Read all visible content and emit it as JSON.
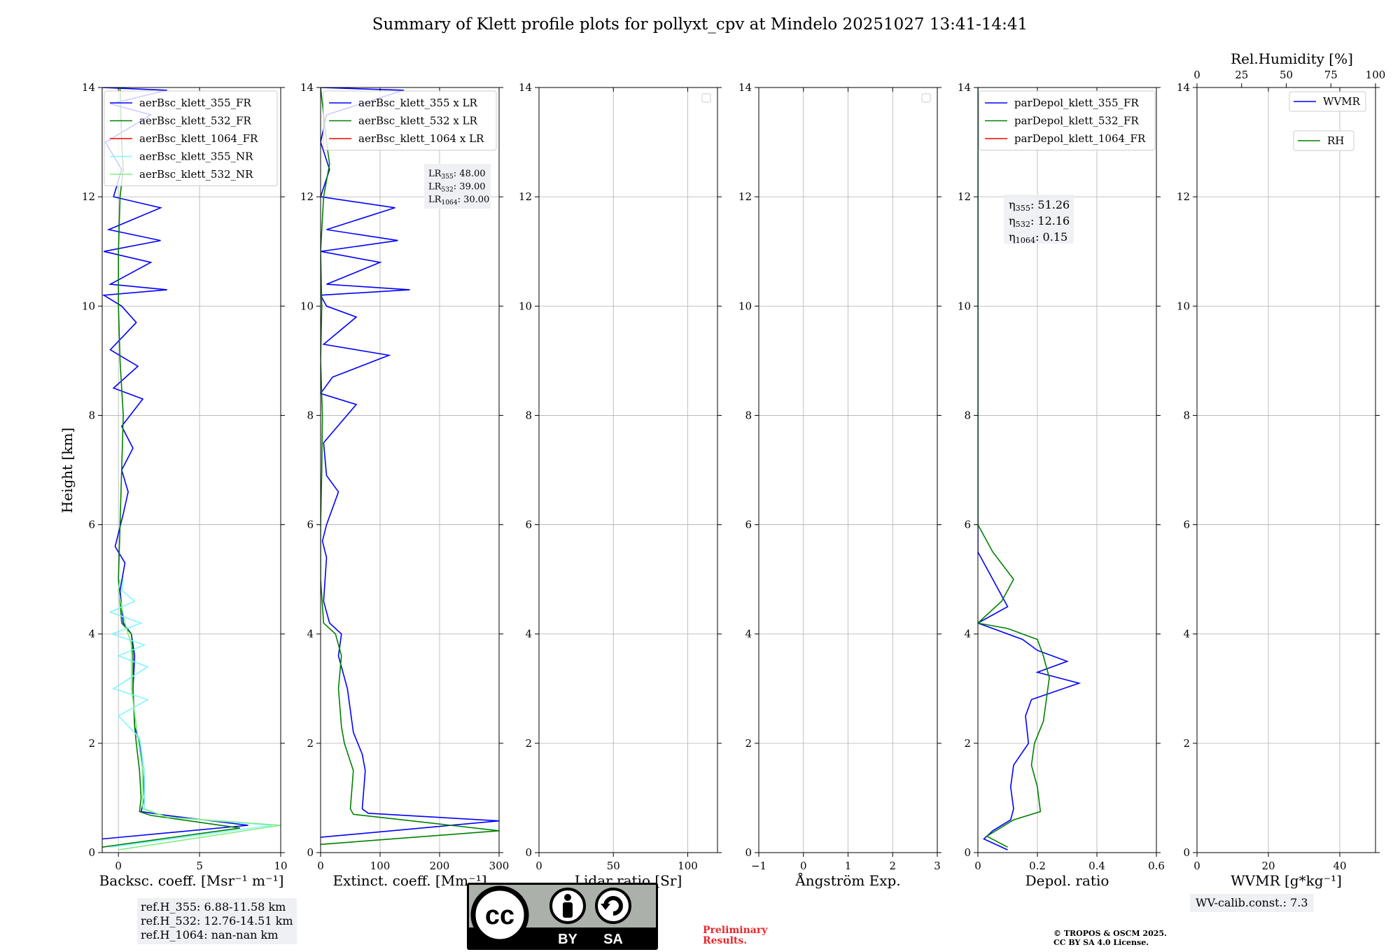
{
  "title": "Summary of Klett profile plots for pollyxt_cpv at Mindelo 20251027 13:41-14:41",
  "ylabel": "Height [km]",
  "ref_heights": [
    "ref.H_355: 6.88-11.58 km",
    "ref.H_532: 12.76-14.51 km",
    "ref.H_1064: nan-nan km"
  ],
  "wv_calib": "WV-calib.const.: 7.3",
  "preliminary": [
    "Preliminary",
    "Results."
  ],
  "copyright": [
    "© TROPOS & OSCM 2025.",
    "CC BY SA 4.0 License."
  ],
  "license_badge": {
    "cc": "cc",
    "by": "BY",
    "sa": "SA"
  },
  "colors": {
    "blue": "#0000ff",
    "green": "#008000",
    "red": "#ff0000",
    "cyan": "#7ff7ff",
    "lightgreen": "#80ee80",
    "grid": "#b0b0b0"
  },
  "chart_data": [
    {
      "type": "line",
      "xlabel": "Backsc. coeff. [Msr⁻¹ m⁻¹]",
      "xlim": [
        -1,
        10
      ],
      "ylim": [
        0,
        14
      ],
      "xticks": [
        0,
        5,
        10
      ],
      "yticks": [
        0,
        2,
        4,
        6,
        8,
        10,
        12,
        14
      ],
      "grid": true,
      "legend_placement": "top-left",
      "series": [
        {
          "name": "aerBsc_klett_355_FR",
          "color": "#0000ff",
          "points": [
            [
              -1,
              0.25
            ],
            [
              8,
              0.5
            ],
            [
              3,
              0.68
            ],
            [
              1.4,
              0.75
            ],
            [
              1.6,
              1.0
            ],
            [
              1.5,
              1.5
            ],
            [
              1.3,
              2.0
            ],
            [
              1.0,
              2.3
            ],
            [
              0.9,
              3.0
            ],
            [
              1.0,
              3.6
            ],
            [
              0.8,
              4.0
            ],
            [
              0.3,
              4.2
            ],
            [
              0.1,
              4.8
            ],
            [
              0.4,
              5.3
            ],
            [
              -0.2,
              5.6
            ],
            [
              0.3,
              6.2
            ],
            [
              0.6,
              6.6
            ],
            [
              0.2,
              7.0
            ],
            [
              0.9,
              7.4
            ],
            [
              0.2,
              7.8
            ],
            [
              1.5,
              8.3
            ],
            [
              -0.3,
              8.5
            ],
            [
              1.2,
              8.9
            ],
            [
              -0.5,
              9.2
            ],
            [
              1.1,
              9.7
            ],
            [
              0.2,
              10.0
            ],
            [
              -0.9,
              10.2
            ],
            [
              3.0,
              10.3
            ],
            [
              -0.5,
              10.4
            ],
            [
              2.0,
              10.8
            ],
            [
              -0.9,
              11.0
            ],
            [
              2.6,
              11.2
            ],
            [
              -0.6,
              11.4
            ],
            [
              2.6,
              11.8
            ],
            [
              -0.3,
              12.0
            ],
            [
              0.2,
              12.5
            ],
            [
              -0.8,
              13.0
            ],
            [
              2.0,
              13.5
            ],
            [
              -0.5,
              13.7
            ],
            [
              3.0,
              13.95
            ],
            [
              -1,
              14.0
            ]
          ]
        },
        {
          "name": "aerBsc_klett_532_FR",
          "color": "#008000",
          "points": [
            [
              -1,
              0.1
            ],
            [
              7.5,
              0.45
            ],
            [
              2,
              0.68
            ],
            [
              1.3,
              0.75
            ],
            [
              1.4,
              1.0
            ],
            [
              1.3,
              1.5
            ],
            [
              1.1,
              2.0
            ],
            [
              1.0,
              2.3
            ],
            [
              0.9,
              3.0
            ],
            [
              0.9,
              3.6
            ],
            [
              0.8,
              4.0
            ],
            [
              0.2,
              4.2
            ],
            [
              0.0,
              5.0
            ],
            [
              0.1,
              6.0
            ],
            [
              0.2,
              7.0
            ],
            [
              0.3,
              8.0
            ],
            [
              0.1,
              9.0
            ],
            [
              0.0,
              10.0
            ],
            [
              0.0,
              11.0
            ],
            [
              0.1,
              12.0
            ],
            [
              0.3,
              12.5
            ],
            [
              0.2,
              13.0
            ],
            [
              0.1,
              14.0
            ]
          ]
        },
        {
          "name": "aerBsc_klett_1064_FR",
          "color": "#ff0000",
          "points": []
        },
        {
          "name": "aerBsc_klett_355_NR",
          "color": "#7ff7ff",
          "points": [
            [
              -0.5,
              0.1
            ],
            [
              9.5,
              0.5
            ],
            [
              3,
              0.65
            ],
            [
              1.6,
              0.8
            ],
            [
              1.6,
              1.5
            ],
            [
              1.3,
              2.1
            ],
            [
              0.0,
              2.5
            ],
            [
              1.8,
              2.8
            ],
            [
              -0.3,
              3.0
            ],
            [
              1.8,
              3.4
            ],
            [
              0.0,
              3.6
            ],
            [
              1.6,
              3.8
            ],
            [
              -0.4,
              4.0
            ],
            [
              1.4,
              4.2
            ],
            [
              -0.5,
              4.4
            ],
            [
              1.0,
              4.6
            ],
            [
              0.2,
              4.8
            ],
            [
              0.3,
              5.0
            ]
          ]
        },
        {
          "name": "aerBsc_klett_532_NR",
          "color": "#80ee80",
          "points": [
            [
              0,
              0.05
            ],
            [
              10,
              0.5
            ],
            [
              3,
              0.65
            ],
            [
              1.5,
              0.8
            ],
            [
              1.5,
              1.5
            ],
            [
              1.2,
              2.1
            ],
            [
              0.8,
              3.0
            ],
            [
              0.8,
              3.8
            ],
            [
              0.4,
              4.2
            ],
            [
              0.0,
              4.8
            ],
            [
              0.1,
              5.0
            ]
          ]
        }
      ]
    },
    {
      "type": "line",
      "xlabel": "Extinct. coeff. [Mm⁻¹]",
      "xlim": [
        0,
        300
      ],
      "ylim": [
        0,
        14
      ],
      "xticks": [
        0,
        100,
        200,
        300
      ],
      "yticks": [
        0,
        2,
        4,
        6,
        8,
        10,
        12,
        14
      ],
      "grid": true,
      "legend_placement": "top-right",
      "annotation": [
        "LR355: 48.00",
        "LR532: 39.00",
        "LR1064: 30.00"
      ],
      "series": [
        {
          "name": "aerBsc_klett_355 x LR",
          "color": "#0000ff",
          "points": [
            [
              0,
              0.28
            ],
            [
              300,
              0.58
            ],
            [
              80,
              0.72
            ],
            [
              70,
              0.8
            ],
            [
              75,
              1.5
            ],
            [
              70,
              1.8
            ],
            [
              55,
              2.2
            ],
            [
              45,
              3.0
            ],
            [
              30,
              3.6
            ],
            [
              35,
              4.0
            ],
            [
              15,
              4.2
            ],
            [
              5,
              4.6
            ],
            [
              10,
              5.4
            ],
            [
              3,
              5.7
            ],
            [
              10,
              6.0
            ],
            [
              30,
              6.6
            ],
            [
              10,
              6.9
            ],
            [
              5,
              7.5
            ],
            [
              60,
              8.2
            ],
            [
              0,
              8.4
            ],
            [
              20,
              8.7
            ],
            [
              115,
              9.1
            ],
            [
              5,
              9.3
            ],
            [
              60,
              9.8
            ],
            [
              10,
              10.0
            ],
            [
              0,
              10.2
            ],
            [
              150,
              10.3
            ],
            [
              10,
              10.4
            ],
            [
              100,
              10.8
            ],
            [
              0,
              11.0
            ],
            [
              130,
              11.2
            ],
            [
              10,
              11.4
            ],
            [
              125,
              11.8
            ],
            [
              0,
              12.0
            ],
            [
              15,
              12.5
            ],
            [
              0,
              13.0
            ],
            [
              10,
              13.5
            ],
            [
              140,
              13.95
            ],
            [
              0,
              14.0
            ]
          ]
        },
        {
          "name": "aerBsc_klett_532 x LR",
          "color": "#008000",
          "points": [
            [
              0,
              0.15
            ],
            [
              300,
              0.4
            ],
            [
              55,
              0.7
            ],
            [
              50,
              0.8
            ],
            [
              55,
              1.5
            ],
            [
              40,
              2.0
            ],
            [
              35,
              2.3
            ],
            [
              30,
              3.0
            ],
            [
              35,
              3.6
            ],
            [
              25,
              4.0
            ],
            [
              5,
              4.2
            ],
            [
              0,
              5.0
            ],
            [
              0,
              6.0
            ],
            [
              2,
              7.0
            ],
            [
              3,
              8.0
            ],
            [
              0,
              9.0
            ],
            [
              2,
              10.0
            ],
            [
              0,
              11.0
            ],
            [
              5,
              12.0
            ],
            [
              15,
              12.6
            ],
            [
              10,
              13.0
            ],
            [
              5,
              13.5
            ],
            [
              0,
              14.0
            ]
          ]
        },
        {
          "name": "aerBsc_klett_1064 x LR",
          "color": "#ff0000",
          "points": []
        }
      ]
    },
    {
      "type": "line",
      "xlabel": "Lidar ratio [Sr]",
      "xlim": [
        0,
        120
      ],
      "ylim": [
        0,
        14
      ],
      "xticks": [
        0,
        50,
        100
      ],
      "yticks": [
        0,
        2,
        4,
        6,
        8,
        10,
        12,
        14
      ],
      "grid": true,
      "legend_placement": "top-right",
      "series": []
    },
    {
      "type": "line",
      "xlabel": "Ångström Exp.",
      "xlim": [
        -1,
        3
      ],
      "ylim": [
        0,
        14
      ],
      "xticks": [
        -1,
        0,
        1,
        2,
        3
      ],
      "yticks": [
        0,
        2,
        4,
        6,
        8,
        10,
        12,
        14
      ],
      "grid": true,
      "legend_placement": "top-right",
      "series": []
    },
    {
      "type": "line",
      "xlabel": "Depol. ratio",
      "xlim": [
        0,
        0.6
      ],
      "ylim": [
        0,
        14
      ],
      "xticks": [
        0.0,
        0.2,
        0.4,
        0.6
      ],
      "yticks": [
        0,
        2,
        4,
        6,
        8,
        10,
        12,
        14
      ],
      "grid": true,
      "legend_placement": "top-left",
      "annotation": [
        "η355: 51.26",
        "η532: 12.16",
        "η1064: 0.15"
      ],
      "series": [
        {
          "name": "parDepol_klett_355_FR",
          "color": "#0000ff",
          "points": [
            [
              0.1,
              0.05
            ],
            [
              0.02,
              0.25
            ],
            [
              0.05,
              0.4
            ],
            [
              0.11,
              0.6
            ],
            [
              0.12,
              0.8
            ],
            [
              0.11,
              1.2
            ],
            [
              0.12,
              1.6
            ],
            [
              0.17,
              2.0
            ],
            [
              0.16,
              2.5
            ],
            [
              0.18,
              2.8
            ],
            [
              0.34,
              3.1
            ],
            [
              0.2,
              3.3
            ],
            [
              0.3,
              3.5
            ],
            [
              0.2,
              3.7
            ],
            [
              0.15,
              3.9
            ],
            [
              0.05,
              4.1
            ],
            [
              0.0,
              4.2
            ],
            [
              0.1,
              4.5
            ],
            [
              0.05,
              5.0
            ],
            [
              0.0,
              5.5
            ],
            [
              0.0,
              14.0
            ]
          ]
        },
        {
          "name": "parDepol_klett_532_FR",
          "color": "#008000",
          "points": [
            [
              0.1,
              0.1
            ],
            [
              0.03,
              0.3
            ],
            [
              0.12,
              0.6
            ],
            [
              0.21,
              0.75
            ],
            [
              0.2,
              1.2
            ],
            [
              0.18,
              1.6
            ],
            [
              0.19,
              2.0
            ],
            [
              0.22,
              2.4
            ],
            [
              0.23,
              2.8
            ],
            [
              0.24,
              3.2
            ],
            [
              0.22,
              3.6
            ],
            [
              0.2,
              3.9
            ],
            [
              0.1,
              4.1
            ],
            [
              0.0,
              4.2
            ],
            [
              0.08,
              4.6
            ],
            [
              0.12,
              5.0
            ],
            [
              0.05,
              5.5
            ],
            [
              0.0,
              6.0
            ],
            [
              0.0,
              14.0
            ]
          ]
        },
        {
          "name": "parDepol_klett_1064_FR",
          "color": "#ff0000",
          "points": []
        }
      ]
    },
    {
      "type": "line",
      "xlabel": "WVMR [g*kg⁻¹]",
      "xlim": [
        0,
        50
      ],
      "ylim": [
        0,
        14
      ],
      "xticks": [
        0,
        20,
        40
      ],
      "yticks": [
        0,
        2,
        4,
        6,
        8,
        10,
        12,
        14
      ],
      "x2label": "Rel.Humidity [%]",
      "x2lim": [
        0,
        100
      ],
      "x2ticks": [
        0,
        25,
        50,
        75,
        100
      ],
      "grid": true,
      "legend_placement": "top-right",
      "series": [
        {
          "name": "WVMR",
          "color": "#0000ff",
          "points": []
        },
        {
          "name": "RH",
          "color": "#008000",
          "points": []
        }
      ]
    }
  ]
}
